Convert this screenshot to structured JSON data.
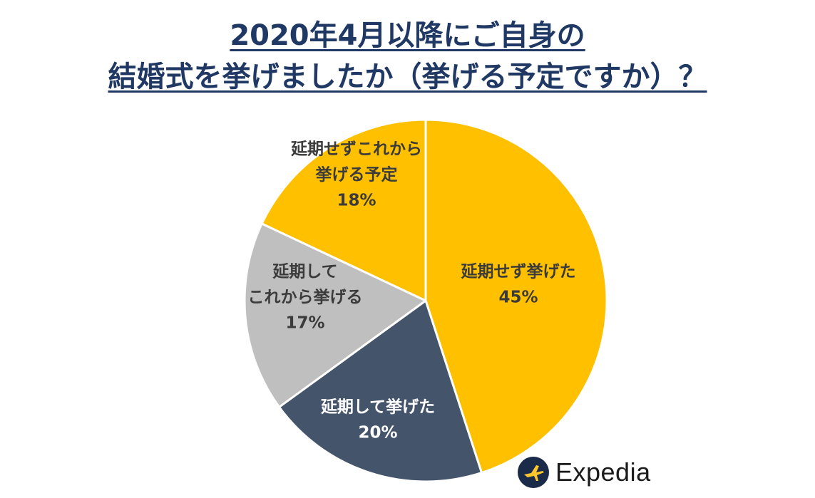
{
  "title": {
    "line1": "2020年4月以降にご自身の",
    "line2": "結婚式を挙げましたか（挙げる予定ですか）？"
  },
  "colors": {
    "title": "#1f3864",
    "yellow": "#ffc000",
    "navy": "#44546a",
    "gray": "#bfbfbf",
    "label_dark": "#3b3b3b",
    "label_light": "#ffffff"
  },
  "chart_data": {
    "type": "pie",
    "title": "2020年4月以降にご自身の結婚式を挙げましたか（挙げる予定ですか）？",
    "slices": [
      {
        "label_lines": [
          "延期せず挙げた"
        ],
        "value": 45,
        "value_label": "45%",
        "color": "#ffc000",
        "text_color": "#3b3b3b"
      },
      {
        "label_lines": [
          "延期して挙げた"
        ],
        "value": 20,
        "value_label": "20%",
        "color": "#44546a",
        "text_color": "#ffffff"
      },
      {
        "label_lines": [
          "延期して",
          "これから挙げる"
        ],
        "value": 17,
        "value_label": "17%",
        "color": "#bfbfbf",
        "text_color": "#3b3b3b"
      },
      {
        "label_lines": [
          "延期せずこれから",
          "挙げる予定"
        ],
        "value": 18,
        "value_label": "18%",
        "color": "#ffc000",
        "text_color": "#3b3b3b"
      }
    ]
  },
  "logo": {
    "text": "Expedia",
    "icon": "airplane-icon",
    "color": "#1a2b49",
    "plane_color": "#ffc72c"
  }
}
